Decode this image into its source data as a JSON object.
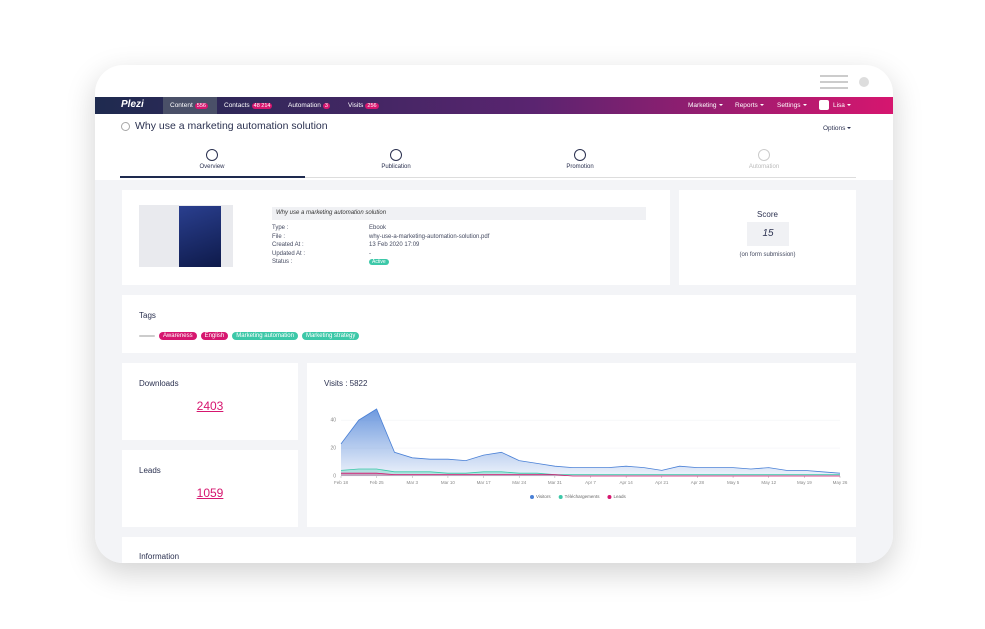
{
  "nav": {
    "logo": "Plezi",
    "items": [
      {
        "label": "Content",
        "badge": "556"
      },
      {
        "label": "Contacts",
        "badge": "48 214"
      },
      {
        "label": "Automation",
        "badge": "3"
      },
      {
        "label": "Visits",
        "badge": "256"
      }
    ],
    "menus": [
      "Marketing",
      "Reports",
      "Settings"
    ],
    "user": "Lisa"
  },
  "header": {
    "title": "Why use a marketing automation solution",
    "options": "Options",
    "steps": [
      "Overview",
      "Publication",
      "Promotion",
      "Automation"
    ]
  },
  "content": {
    "title": "Why use a marketing automation solution",
    "fields": [
      {
        "label": "Type :",
        "value": "Ebook"
      },
      {
        "label": "File :",
        "value": "why-use-a-marketing-automation-solution.pdf"
      },
      {
        "label": "Created At :",
        "value": "13 Feb 2020 17:09"
      },
      {
        "label": "Updated At :",
        "value": "-"
      },
      {
        "label": "Status :",
        "value": "Active"
      }
    ]
  },
  "score": {
    "label": "Score",
    "value": "15",
    "note": "(on form submission)"
  },
  "tags": {
    "label": "Tags",
    "items": [
      {
        "label": "Awareness",
        "color": "#d6166f"
      },
      {
        "label": "English",
        "color": "#d6166f"
      },
      {
        "label": "Marketing automation",
        "color": "#3cc8a8"
      },
      {
        "label": "Marketing strategy",
        "color": "#3cc8a8"
      }
    ]
  },
  "downloads": {
    "label": "Downloads",
    "value": "2403"
  },
  "leads": {
    "label": "Leads",
    "value": "1059"
  },
  "chart_data": {
    "type": "area",
    "title": "Visits : 5822",
    "categories": [
      "Feb 18",
      null,
      "Feb 25",
      null,
      "Mar 3",
      null,
      "Mar 10",
      null,
      "Mar 17",
      null,
      "Mar 24",
      null,
      "Mar 31",
      null,
      "Apr 7",
      null,
      "Apr 14",
      null,
      "Apr 21",
      null,
      "Apr 28",
      null,
      "May 5",
      null,
      "May 12",
      null,
      "May 19",
      null,
      "May 26"
    ],
    "series": [
      {
        "name": "Visitors",
        "color": "#4a80d6",
        "values": [
          23,
          40,
          48,
          17,
          13,
          12,
          12,
          11,
          15,
          17,
          11,
          9,
          7,
          6,
          6,
          6,
          7,
          6,
          4,
          7,
          6,
          6,
          6,
          5,
          6,
          4,
          4,
          3,
          2
        ]
      },
      {
        "name": "Téléchargements",
        "color": "#3cc8a8",
        "values": [
          4,
          5,
          5,
          3,
          3,
          3,
          2,
          2,
          3,
          3,
          2,
          2,
          1,
          1,
          1,
          1,
          1,
          1,
          1,
          1,
          1,
          1,
          1,
          1,
          1,
          1,
          1,
          1,
          1
        ]
      },
      {
        "name": "Leads",
        "color": "#d6166f",
        "values": [
          2,
          2,
          2,
          1,
          1,
          1,
          1,
          1,
          1,
          1,
          1,
          1,
          1,
          0,
          0,
          0,
          0,
          0,
          0,
          0,
          0,
          0,
          0,
          0,
          0,
          0,
          0,
          0,
          0
        ]
      }
    ],
    "ylim": [
      0,
      58
    ],
    "yticks": [
      0,
      20,
      40
    ]
  },
  "information": {
    "title": "Information"
  }
}
